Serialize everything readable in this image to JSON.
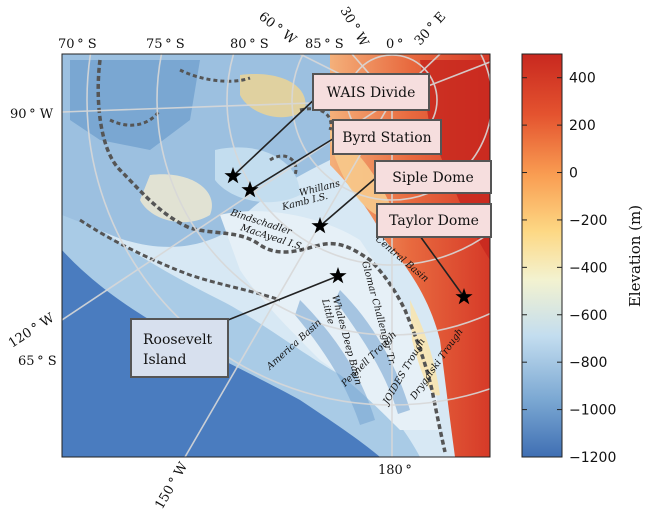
{
  "map": {
    "colorbar": {
      "title": "Elevation (m)",
      "ticks": [
        "400",
        "200",
        "0",
        "−200",
        "−400",
        "−600",
        "−800",
        "−1000",
        "−1200"
      ],
      "range": [
        -1200,
        500
      ],
      "colors": [
        "#3f6fb3",
        "#7aa7d2",
        "#c3ddef",
        "#f3f2d0",
        "#fdd884",
        "#f99d52",
        "#e4532f",
        "#c8281f"
      ]
    },
    "graticule_labels": {
      "top": [
        "70 ° S",
        "75 ° S",
        "80 ° S",
        "85 ° S",
        "0 °",
        "30 ° E"
      ],
      "top_rotated": [
        "60 ° W",
        "30 ° W"
      ],
      "left": [
        "90 ° W",
        "120 ° W",
        "65 ° S"
      ],
      "bottom": [
        "150 ° W",
        "180 °"
      ]
    },
    "sites": [
      {
        "name": "WAIS Divide"
      },
      {
        "name": "Byrd Station"
      },
      {
        "name": "Siple Dome"
      },
      {
        "name": "Taylor Dome"
      },
      {
        "name": "Roosevelt",
        "name2": "Island"
      }
    ],
    "features": [
      "Whillans",
      "Kamb I.S.",
      "Bindschadler",
      "MacAyeal I.S.",
      "Central Basin",
      "Glomar Challenger Tr.",
      "Whales Deep Basin",
      "Little",
      "America Basin",
      "Pennell Trough",
      "JOIDES Trough",
      "Drygalski Trough"
    ],
    "colors": {
      "ocean": "#4a7cbf",
      "shelf": "#a9cbe6",
      "ice_low": "#cfe4f2",
      "ice_high": "#e05a3a",
      "grounding_line": "#555555",
      "box_fill": "#f6dede",
      "box_fill_roosevelt": "#d7e0ee"
    }
  }
}
